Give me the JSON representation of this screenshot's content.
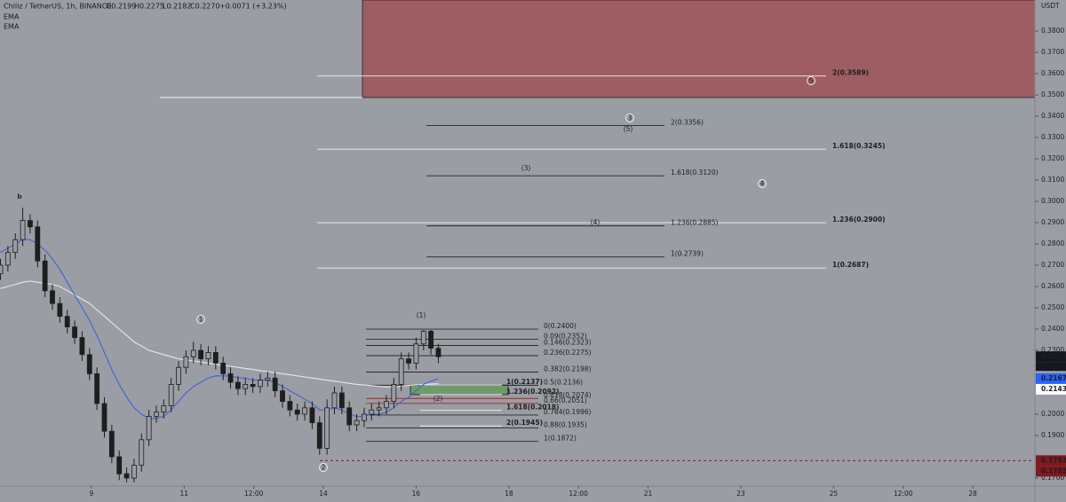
{
  "chart_data": {
    "type": "candlestick",
    "title": "Chiliz / TetherUS, 1h, BINANCE",
    "ohlc_readout": [
      "O0.2199",
      "H0.2275",
      "L0.2182",
      "C0.2270",
      "+0.0071 (+3.23%)"
    ],
    "price_unit": "USDT",
    "x": [
      7.04,
      7.2,
      7.36,
      7.52,
      7.68,
      7.84,
      8,
      8.16,
      8.32,
      8.48,
      8.64,
      8.8,
      8.96,
      9.12,
      9.28,
      9.44,
      9.6,
      9.76,
      9.92,
      10.08,
      10.24,
      10.4,
      10.56,
      10.72,
      10.88,
      11.04,
      11.2,
      11.36,
      11.52,
      11.68,
      11.84,
      12,
      12.16,
      12.32,
      12.48,
      12.64,
      12.8,
      12.96,
      13.12,
      13.28,
      13.44,
      13.6,
      13.76,
      13.92,
      14.08,
      14.24,
      14.4,
      14.56,
      14.72,
      14.88,
      15.04,
      15.2,
      15.36,
      15.52,
      15.68,
      15.84,
      16,
      16.16,
      16.32,
      16.48
    ],
    "open": [
      0.266,
      0.27,
      0.276,
      0.282,
      0.291,
      0.288,
      0.272,
      0.258,
      0.252,
      0.246,
      0.241,
      0.236,
      0.228,
      0.219,
      0.205,
      0.192,
      0.18,
      0.172,
      0.17,
      0.176,
      0.188,
      0.199,
      0.201,
      0.204,
      0.214,
      0.222,
      0.227,
      0.23,
      0.226,
      0.229,
      0.224,
      0.219,
      0.215,
      0.212,
      0.214,
      0.213,
      0.216,
      0.217,
      0.211,
      0.206,
      0.202,
      0.2,
      0.203,
      0.196,
      0.184,
      0.203,
      0.21,
      0.203,
      0.195,
      0.197,
      0.2,
      0.202,
      0.203,
      0.206,
      0.214,
      0.226,
      0.224,
      0.233,
      0.239,
      0.231
    ],
    "high": [
      0.273,
      0.279,
      0.285,
      0.297,
      0.294,
      0.291,
      0.275,
      0.261,
      0.255,
      0.249,
      0.244,
      0.239,
      0.231,
      0.222,
      0.208,
      0.195,
      0.183,
      0.175,
      0.179,
      0.191,
      0.202,
      0.204,
      0.207,
      0.217,
      0.225,
      0.23,
      0.234,
      0.233,
      0.232,
      0.232,
      0.227,
      0.222,
      0.218,
      0.217,
      0.217,
      0.219,
      0.22,
      0.22,
      0.214,
      0.209,
      0.205,
      0.206,
      0.206,
      0.199,
      0.207,
      0.213,
      0.213,
      0.206,
      0.2,
      0.203,
      0.205,
      0.206,
      0.209,
      0.217,
      0.229,
      0.229,
      0.236,
      0.2396,
      0.2396,
      0.233
    ],
    "low": [
      0.263,
      0.267,
      0.273,
      0.279,
      0.285,
      0.269,
      0.255,
      0.249,
      0.243,
      0.238,
      0.233,
      0.225,
      0.216,
      0.202,
      0.189,
      0.177,
      0.169,
      0.168,
      0.168,
      0.173,
      0.185,
      0.196,
      0.198,
      0.201,
      0.211,
      0.219,
      0.224,
      0.223,
      0.223,
      0.221,
      0.216,
      0.212,
      0.209,
      0.209,
      0.21,
      0.21,
      0.213,
      0.208,
      0.203,
      0.199,
      0.197,
      0.197,
      0.193,
      0.181,
      0.181,
      0.2,
      0.2,
      0.192,
      0.192,
      0.194,
      0.197,
      0.199,
      0.2,
      0.203,
      0.211,
      0.221,
      0.221,
      0.23,
      0.228,
      0.224
    ],
    "close": [
      0.27,
      0.276,
      0.282,
      0.291,
      0.288,
      0.272,
      0.258,
      0.252,
      0.246,
      0.241,
      0.236,
      0.228,
      0.219,
      0.205,
      0.192,
      0.18,
      0.172,
      0.17,
      0.176,
      0.188,
      0.199,
      0.201,
      0.204,
      0.214,
      0.222,
      0.227,
      0.23,
      0.226,
      0.229,
      0.224,
      0.219,
      0.215,
      0.212,
      0.214,
      0.213,
      0.216,
      0.217,
      0.211,
      0.206,
      0.202,
      0.2,
      0.203,
      0.196,
      0.184,
      0.203,
      0.21,
      0.203,
      0.195,
      0.197,
      0.2,
      0.202,
      0.203,
      0.206,
      0.214,
      0.226,
      0.224,
      0.233,
      0.239,
      0.231,
      0.227
    ],
    "candle_color": "#1e1e1e",
    "series": [
      {
        "name": "EMA",
        "color": "#e8e8e8",
        "values": [
          0.259,
          0.26,
          0.261,
          0.262,
          0.2625,
          0.262,
          0.2615,
          0.261,
          0.26,
          0.258,
          0.256,
          0.254,
          0.252,
          0.249,
          0.246,
          0.243,
          0.24,
          0.237,
          0.234,
          0.232,
          0.23,
          0.229,
          0.228,
          0.227,
          0.226,
          0.2255,
          0.225,
          0.2245,
          0.224,
          0.2235,
          0.223,
          0.2225,
          0.222,
          0.2215,
          0.221,
          0.2205,
          0.22,
          0.2195,
          0.219,
          0.2185,
          0.218,
          0.2175,
          0.217,
          0.2165,
          0.216,
          0.2155,
          0.215,
          0.2145,
          0.214,
          0.2137,
          0.2134,
          0.2131,
          0.2128,
          0.2128,
          0.2132,
          0.2135,
          0.2138,
          0.214,
          0.2142,
          0.2143
        ]
      },
      {
        "name": "EMA",
        "color": "#3f63d8",
        "values": [
          0.276,
          0.278,
          0.28,
          0.282,
          0.282,
          0.28,
          0.277,
          0.273,
          0.268,
          0.262,
          0.256,
          0.25,
          0.244,
          0.237,
          0.229,
          0.221,
          0.214,
          0.208,
          0.203,
          0.2,
          0.198,
          0.198,
          0.199,
          0.202,
          0.206,
          0.21,
          0.213,
          0.215,
          0.217,
          0.218,
          0.218,
          0.218,
          0.217,
          0.217,
          0.216,
          0.216,
          0.216,
          0.215,
          0.213,
          0.211,
          0.209,
          0.207,
          0.205,
          0.202,
          0.202,
          0.203,
          0.202,
          0.2,
          0.199,
          0.199,
          0.2,
          0.2,
          0.201,
          0.203,
          0.206,
          0.208,
          0.211,
          0.214,
          0.2155,
          0.2167
        ]
      }
    ],
    "xlim": [
      7.03,
      29.34
    ],
    "ylim": [
      0.1675,
      0.3946
    ],
    "xticks": [
      9,
      11,
      {
        "value": 12.5,
        "label": "12:00"
      },
      14,
      16,
      18,
      {
        "value": 19.5,
        "label": "12:00"
      },
      21,
      23,
      25,
      {
        "value": 26.5,
        "label": "12:00"
      },
      28
    ],
    "yticks": [
      {
        "value": 0.38,
        "label": "0.3800"
      },
      {
        "value": 0.37,
        "label": "0.3700"
      },
      {
        "value": 0.36,
        "label": "0.3600"
      },
      {
        "value": 0.35,
        "label": "0.3500"
      },
      {
        "value": 0.34,
        "label": "0.3400"
      },
      {
        "value": 0.33,
        "label": "0.3300"
      },
      {
        "value": 0.32,
        "label": "0.3200"
      },
      {
        "value": 0.31,
        "label": "0.3100"
      },
      {
        "value": 0.3,
        "label": "0.3000"
      },
      {
        "value": 0.29,
        "label": "0.2900"
      },
      {
        "value": 0.28,
        "label": "0.2800"
      },
      {
        "value": 0.27,
        "label": "0.2700"
      },
      {
        "value": 0.26,
        "label": "0.2600"
      },
      {
        "value": 0.25,
        "label": "0.2500"
      },
      {
        "value": 0.24,
        "label": "0.2400"
      },
      {
        "value": 0.23,
        "label": "0.2300"
      },
      {
        "value": 0.2,
        "label": "0.2000"
      },
      {
        "value": 0.19,
        "label": "0.1900"
      },
      {
        "value": 0.17,
        "label": "0.1700"
      }
    ],
    "price_badges": [
      {
        "value": 0.227,
        "label": "0.2270",
        "color": "#131722"
      },
      {
        "value": 0.2167,
        "label": "0.2167",
        "color": "#2962ff"
      },
      {
        "value": 0.2143,
        "label": "0.2143",
        "color": "#ffffff"
      },
      {
        "value": 0.1782,
        "label": "0.1782",
        "color": "#801922"
      },
      {
        "value": 0.1782,
        "label": "0.1782",
        "color": "#801922"
      }
    ],
    "countdown": "25:07",
    "resistance_zone": {
      "price": 0.3488,
      "color": "#9e5d62"
    },
    "target_box": {
      "top": 0.2137,
      "bottom": 0.2092,
      "color": "#6f9a6b"
    },
    "low_line": {
      "price": 0.1782,
      "color": "#8b1a1a"
    },
    "fib_sets": [
      {
        "color": "#f2f2f2",
        "levels": [
          {
            "label": "2(0.3589)",
            "price": 0.3589
          },
          {
            "label": "1.618(0.3245)",
            "price": 0.3245
          },
          {
            "label": "1.236(0.2900)",
            "price": 0.29
          },
          {
            "label": "1(0.2687)",
            "price": 0.2687
          }
        ]
      },
      {
        "color": "#2a2a2a",
        "levels": [
          {
            "label": "2(0.3356)",
            "price": 0.3356
          },
          {
            "label": "1.618(0.3120)",
            "price": 0.312
          },
          {
            "label": "1.236(0.2885)",
            "price": 0.2885
          },
          {
            "label": "1(0.2739)",
            "price": 0.2739
          }
        ]
      },
      {
        "color": "#2a2a2a",
        "levels": [
          {
            "label": "0(0.2400)",
            "price": 0.24
          },
          {
            "label": "0.09(0.2352)",
            "price": 0.2352
          },
          {
            "label": "0.146(0.2323)",
            "price": 0.2323
          },
          {
            "label": "0.236(0.2275)",
            "price": 0.2275
          },
          {
            "label": "0.382(0.2198)",
            "price": 0.2198
          },
          {
            "label": "0.5(0.2136)",
            "price": 0.2136
          },
          {
            "label": "0.618(0.2074)",
            "price": 0.2074,
            "color": "#a32626"
          },
          {
            "label": "0.66(0.2051)",
            "price": 0.2051,
            "color": "#a32626"
          },
          {
            "label": "0.764(0.1996)",
            "price": 0.1996
          },
          {
            "label": "0.88(0.1935)",
            "price": 0.1935
          },
          {
            "label": "1(0.1872)",
            "price": 0.1872
          }
        ]
      },
      {
        "color": "#f2f2f2",
        "levels": [
          {
            "label": "1(0.2137)",
            "price": 0.2137
          },
          {
            "label": "1.236(0.2092)",
            "price": 0.2092
          },
          {
            "label": "1.618(0.2018)",
            "price": 0.2018
          },
          {
            "label": "2(0.1945)",
            "price": 0.1945
          }
        ]
      }
    ],
    "circled_waves": [
      "1",
      "2",
      "3",
      "4",
      "5"
    ],
    "paren_waves": [
      "(1)",
      "(2)",
      "(3)",
      "(4)",
      "(5)"
    ],
    "corrective_waves": [
      "b"
    ]
  }
}
